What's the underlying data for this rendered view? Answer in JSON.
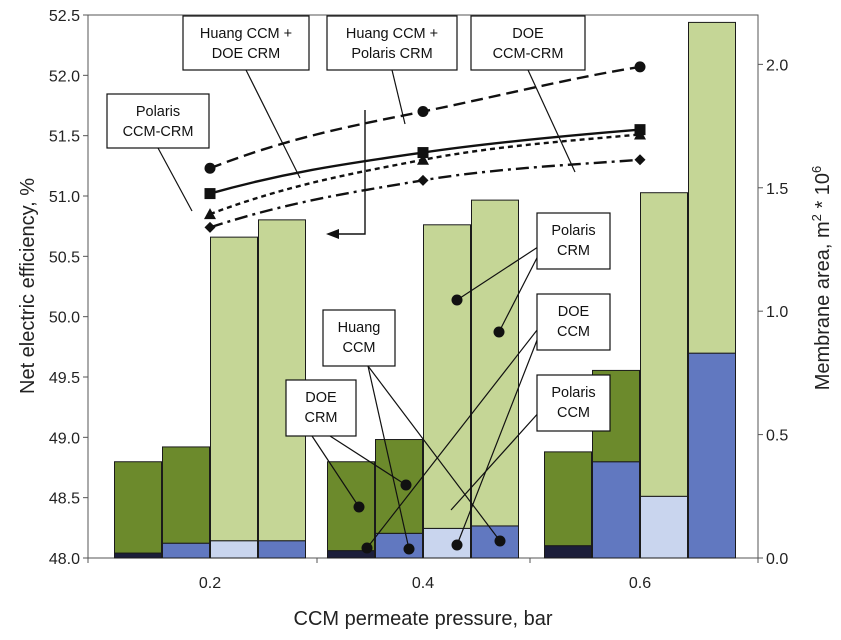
{
  "chart_data": {
    "type": "bar",
    "xlabel": "CCM permeate pressure, bar",
    "ylabel": "Net electric efficiency, %",
    "y2label_main": "Membrane area, m",
    "y2label_sup1": "2",
    "y2label_mid": " * 10",
    "y2label_sup2": "6",
    "categories": [
      "0.2",
      "0.4",
      "0.6"
    ],
    "ylim": [
      48.0,
      52.5
    ],
    "y2lim": [
      0.0,
      2.2
    ],
    "yticks": [
      "48.0",
      "48.5",
      "49.0",
      "49.5",
      "50.0",
      "50.5",
      "51.0",
      "51.5",
      "52.0",
      "52.5"
    ],
    "y2ticks": [
      "0.0",
      "0.5",
      "1.0",
      "1.5",
      "2.0"
    ],
    "bar_series": [
      {
        "name": "Huang CCM",
        "color": "#1c1e3a",
        "values": [
          0.02,
          0.03,
          0.05
        ]
      },
      {
        "name": "DOE CCM",
        "color": "#c9d5ee",
        "values": [
          0.07,
          0.12,
          0.25
        ]
      },
      {
        "name": "Polaris CCM",
        "color": "#6178c0",
        "values": [
          0.06,
          0.1,
          0.83
        ]
      },
      {
        "name": "DOE CRM",
        "color": "#6c8a2c",
        "values": [
          0.39,
          0.39,
          0.43
        ]
      },
      {
        "name": "Polaris CRM",
        "color": "#c5d696",
        "values": [
          1.3,
          1.35,
          1.47
        ]
      }
    ],
    "bars": [
      {
        "category": 0,
        "offset": -1.5,
        "segments": [
          {
            "series": "Huang CCM",
            "bottom": 0,
            "top": 0.02
          },
          {
            "series": "DOE CRM",
            "bottom": 0.02,
            "top": 0.39
          }
        ]
      },
      {
        "category": 0,
        "offset": -0.5,
        "segments": [
          {
            "series": "Polaris CCM",
            "bottom": 0,
            "top": 0.06
          },
          {
            "series": "DOE CRM",
            "bottom": 0.06,
            "top": 0.45
          }
        ]
      },
      {
        "category": 0,
        "offset": 0.5,
        "segments": [
          {
            "series": "DOE CCM",
            "bottom": 0,
            "top": 0.07
          },
          {
            "series": "Polaris CRM",
            "bottom": 0.07,
            "top": 1.3
          }
        ]
      },
      {
        "category": 0,
        "offset": 1.5,
        "segments": [
          {
            "series": "Polaris CCM",
            "bottom": 0,
            "top": 0.07
          },
          {
            "series": "Polaris CRM",
            "bottom": 0.07,
            "top": 1.37
          }
        ]
      },
      {
        "category": 1,
        "offset": -1.5,
        "segments": [
          {
            "series": "Huang CCM",
            "bottom": 0,
            "top": 0.03
          },
          {
            "series": "DOE CRM",
            "bottom": 0.03,
            "top": 0.39
          }
        ]
      },
      {
        "category": 1,
        "offset": -0.5,
        "segments": [
          {
            "series": "Polaris CCM",
            "bottom": 0,
            "top": 0.1
          },
          {
            "series": "DOE CRM",
            "bottom": 0.1,
            "top": 0.48
          }
        ]
      },
      {
        "category": 1,
        "offset": 0.5,
        "segments": [
          {
            "series": "DOE CCM",
            "bottom": 0,
            "top": 0.12
          },
          {
            "series": "Polaris CRM",
            "bottom": 0.12,
            "top": 1.35
          }
        ]
      },
      {
        "category": 1,
        "offset": 1.5,
        "segments": [
          {
            "series": "Polaris CCM",
            "bottom": 0,
            "top": 0.13
          },
          {
            "series": "Polaris CRM",
            "bottom": 0.13,
            "top": 1.45
          }
        ]
      },
      {
        "category": 2,
        "offset": -1.5,
        "segments": [
          {
            "series": "Huang CCM",
            "bottom": 0,
            "top": 0.05
          },
          {
            "series": "DOE CRM",
            "bottom": 0.05,
            "top": 0.43
          }
        ]
      },
      {
        "category": 2,
        "offset": -0.5,
        "segments": [
          {
            "series": "Polaris CCM",
            "bottom": 0,
            "top": 0.39
          },
          {
            "series": "DOE CRM",
            "bottom": 0.39,
            "top": 0.76
          }
        ]
      },
      {
        "category": 2,
        "offset": 0.5,
        "segments": [
          {
            "series": "DOE CCM",
            "bottom": 0,
            "top": 0.25
          },
          {
            "series": "Polaris CRM",
            "bottom": 0.25,
            "top": 1.48
          }
        ]
      },
      {
        "category": 2,
        "offset": 1.5,
        "segments": [
          {
            "series": "Polaris CCM",
            "bottom": 0,
            "top": 0.83
          },
          {
            "series": "Polaris CRM",
            "bottom": 0.83,
            "top": 2.17
          }
        ]
      }
    ],
    "line_series": [
      {
        "name": "Huang CCM + Polaris CRM",
        "style": "dashed",
        "marker": "circle",
        "x": [
          0.2,
          0.4,
          0.6
        ],
        "y": [
          51.23,
          51.7,
          52.07
        ]
      },
      {
        "name": "Huang CCM + DOE CRM",
        "style": "solid",
        "marker": "square",
        "x": [
          0.2,
          0.4,
          0.6
        ],
        "y": [
          51.02,
          51.36,
          51.55
        ]
      },
      {
        "name": "DOE CCM-CRM",
        "style": "dotted",
        "marker": "triangle",
        "x": [
          0.2,
          0.4,
          0.6
        ],
        "y": [
          50.85,
          51.3,
          51.51
        ]
      },
      {
        "name": "Polaris CCM-CRM",
        "style": "dashdot",
        "marker": "diamond",
        "x": [
          0.2,
          0.4,
          0.6
        ],
        "y": [
          50.74,
          51.13,
          51.3
        ]
      }
    ],
    "callouts": [
      {
        "id": "huang-doe",
        "lines": [
          "Huang CCM +",
          "DOE CRM"
        ]
      },
      {
        "id": "huang-polaris",
        "lines": [
          "Huang CCM +",
          "Polaris CRM"
        ]
      },
      {
        "id": "doe-ccm-crm",
        "lines": [
          "DOE",
          "CCM-CRM"
        ]
      },
      {
        "id": "polaris-ccm-crm",
        "lines": [
          "Polaris",
          "CCM-CRM"
        ]
      },
      {
        "id": "polaris-crm",
        "lines": [
          "Polaris",
          "CRM"
        ]
      },
      {
        "id": "doe-ccm",
        "lines": [
          "DOE",
          "CCM"
        ]
      },
      {
        "id": "huang-ccm",
        "lines": [
          "Huang",
          "CCM"
        ]
      },
      {
        "id": "doe-crm",
        "lines": [
          "DOE",
          "CRM"
        ]
      },
      {
        "id": "polaris-ccm",
        "lines": [
          "Polaris",
          "CCM"
        ]
      }
    ]
  }
}
